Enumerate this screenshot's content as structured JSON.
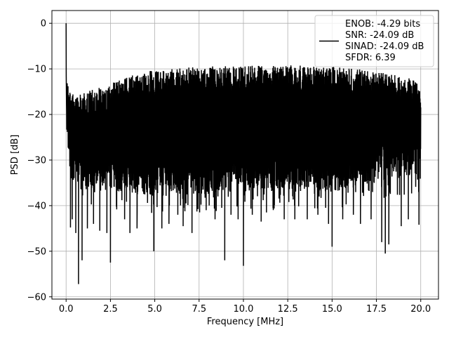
{
  "chart_data": {
    "type": "line",
    "title": "",
    "xlabel": "Frequency [MHz]",
    "ylabel": "PSD [dB]",
    "xlim": [
      -0.8,
      21.0
    ],
    "ylim": [
      -60.5,
      2.8
    ],
    "xticks": [
      0.0,
      2.5,
      5.0,
      7.5,
      10.0,
      12.5,
      15.0,
      17.5,
      20.0
    ],
    "xtick_labels": [
      "0.0",
      "2.5",
      "5.0",
      "7.5",
      "10.0",
      "12.5",
      "15.0",
      "17.5",
      "20.0"
    ],
    "yticks": [
      0,
      -10,
      -20,
      -30,
      -40,
      -50,
      -60
    ],
    "ytick_labels": [
      "0",
      "−10",
      "−20",
      "−30",
      "−40",
      "−50",
      "−60"
    ],
    "grid": true,
    "legend_position": "upper right",
    "series": [
      {
        "label_lines": [
          "ENOB: -4.29 bits",
          "SNR: -24.09 dB",
          "SINAD: -24.09 dB",
          "SFDR: 6.39"
        ],
        "color": "#000000",
        "x_range": [
          0,
          20
        ],
        "peak": {
          "x": 0.0,
          "y": 0.0
        },
        "upper_envelope": [
          [
            0.0,
            -12
          ],
          [
            0.5,
            -16
          ],
          [
            1.0,
            -15
          ],
          [
            2.0,
            -14
          ],
          [
            3.0,
            -12.5
          ],
          [
            4.0,
            -11
          ],
          [
            5.0,
            -10
          ],
          [
            7.5,
            -9.5
          ],
          [
            10.0,
            -9.3
          ],
          [
            12.5,
            -9.2
          ],
          [
            15.0,
            -9.5
          ],
          [
            17.5,
            -10.5
          ],
          [
            19.5,
            -12
          ],
          [
            20.0,
            -14
          ]
        ],
        "lower_envelope": [
          [
            0.0,
            -30
          ],
          [
            1.0,
            -36
          ],
          [
            5.0,
            -38
          ],
          [
            10.0,
            -37
          ],
          [
            15.0,
            -37
          ],
          [
            20.0,
            -33
          ]
        ],
        "notable_dips": [
          {
            "x": 0.25,
            "y": -44.8
          },
          {
            "x": 0.35,
            "y": -43.0
          },
          {
            "x": 0.55,
            "y": -46.0
          },
          {
            "x": 0.7,
            "y": -57.2
          },
          {
            "x": 0.9,
            "y": -52.0
          },
          {
            "x": 1.2,
            "y": -45.0
          },
          {
            "x": 1.55,
            "y": -44.0
          },
          {
            "x": 1.9,
            "y": -45.5
          },
          {
            "x": 2.3,
            "y": -46.0
          },
          {
            "x": 2.5,
            "y": -52.5
          },
          {
            "x": 3.3,
            "y": -43.0
          },
          {
            "x": 3.6,
            "y": -46.0
          },
          {
            "x": 4.0,
            "y": -45.0
          },
          {
            "x": 4.95,
            "y": -50.0
          },
          {
            "x": 5.4,
            "y": -45.0
          },
          {
            "x": 5.8,
            "y": -44.0
          },
          {
            "x": 6.3,
            "y": -42.0
          },
          {
            "x": 6.6,
            "y": -44.5
          },
          {
            "x": 7.1,
            "y": -46.0
          },
          {
            "x": 7.9,
            "y": -41.0
          },
          {
            "x": 8.4,
            "y": -43.0
          },
          {
            "x": 8.95,
            "y": -52.0
          },
          {
            "x": 9.3,
            "y": -42.0
          },
          {
            "x": 9.7,
            "y": -43.0
          },
          {
            "x": 10.0,
            "y": -53.2
          },
          {
            "x": 10.5,
            "y": -42.0
          },
          {
            "x": 11.0,
            "y": -43.5
          },
          {
            "x": 11.3,
            "y": -41.5
          },
          {
            "x": 12.3,
            "y": -43.0
          },
          {
            "x": 12.9,
            "y": -43.0
          },
          {
            "x": 13.6,
            "y": -43.0
          },
          {
            "x": 14.2,
            "y": -42.0
          },
          {
            "x": 14.8,
            "y": -44.0
          },
          {
            "x": 15.0,
            "y": -49.0
          },
          {
            "x": 15.6,
            "y": -43.0
          },
          {
            "x": 16.2,
            "y": -42.0
          },
          {
            "x": 16.6,
            "y": -44.0
          },
          {
            "x": 17.2,
            "y": -43.0
          },
          {
            "x": 17.8,
            "y": -48.0
          },
          {
            "x": 18.0,
            "y": -50.5
          },
          {
            "x": 18.2,
            "y": -48.5
          },
          {
            "x": 18.9,
            "y": -44.5
          },
          {
            "x": 19.3,
            "y": -43.0
          },
          {
            "x": 19.9,
            "y": -44.2
          }
        ]
      }
    ]
  }
}
